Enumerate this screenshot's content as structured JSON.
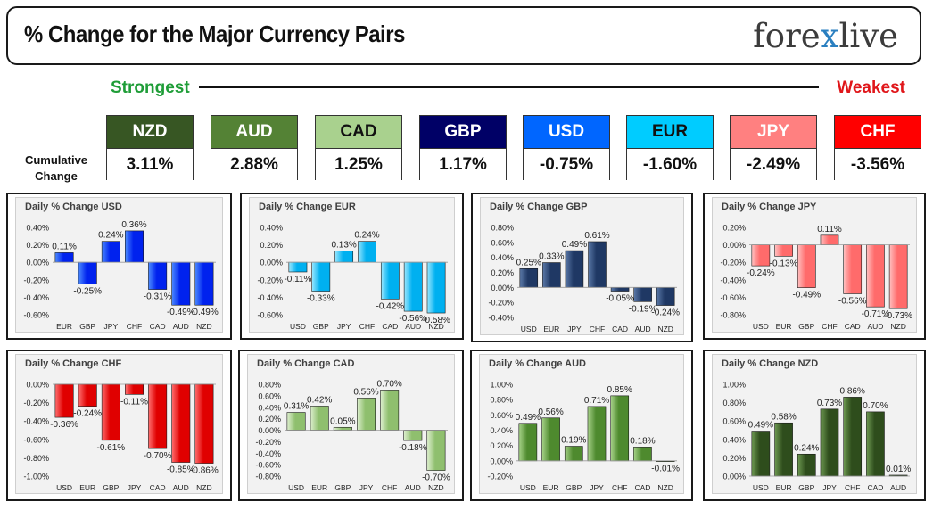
{
  "header": {
    "title": "% Change for the Major Currency Pairs",
    "logo_left": "fore",
    "logo_x": "x",
    "logo_right": "live"
  },
  "scale": {
    "strongest": "Strongest",
    "weakest": "Weakest",
    "cumulative_label": "Cumulative Change"
  },
  "currencies": [
    {
      "name": "NZD",
      "value": "3.11%",
      "color": "#375623",
      "text": "#ffffff"
    },
    {
      "name": "AUD",
      "value": "2.88%",
      "color": "#548235",
      "text": "#ffffff"
    },
    {
      "name": "CAD",
      "value": "1.25%",
      "color": "#a9d18e",
      "text": "#111111"
    },
    {
      "name": "GBP",
      "value": "1.17%",
      "color": "#000066",
      "text": "#ffffff"
    },
    {
      "name": "USD",
      "value": "-0.75%",
      "color": "#0066ff",
      "text": "#ffffff"
    },
    {
      "name": "EUR",
      "value": "-1.60%",
      "color": "#00ccff",
      "text": "#111111"
    },
    {
      "name": "JPY",
      "value": "-2.49%",
      "color": "#ff8080",
      "text": "#ffffff"
    },
    {
      "name": "CHF",
      "value": "-3.56%",
      "color": "#ff0000",
      "text": "#ffffff"
    }
  ],
  "chart_data": [
    {
      "type": "bar",
      "title": "Daily % Change USD",
      "categories": [
        "EUR",
        "GBP",
        "JPY",
        "CHF",
        "CAD",
        "AUD",
        "NZD"
      ],
      "values": [
        0.11,
        -0.25,
        0.24,
        0.36,
        -0.31,
        -0.49,
        -0.49
      ],
      "labels": [
        "0.11%",
        "-0.25%",
        "0.24%",
        "0.36%",
        "-0.31%",
        "-0.49%",
        "-0.49%"
      ],
      "yticks": [
        0.4,
        0.2,
        0.0,
        -0.2,
        -0.4,
        -0.6
      ],
      "ytick_labels": [
        "0.40%",
        "0.20%",
        "0.00%",
        "-0.20%",
        "-0.40%",
        "-0.60%"
      ],
      "ylim": [
        -0.6,
        0.4
      ],
      "color": "#0022ee",
      "light": "#4d8cff"
    },
    {
      "type": "bar",
      "title": "Daily % Change EUR",
      "categories": [
        "USD",
        "GBP",
        "JPY",
        "CHF",
        "CAD",
        "AUD",
        "NZD"
      ],
      "values": [
        -0.11,
        -0.33,
        0.13,
        0.24,
        -0.42,
        -0.56,
        -0.58
      ],
      "labels": [
        "-0.11%",
        "-0.33%",
        "0.13%",
        "0.24%",
        "-0.42%",
        "-0.56%",
        "-0.58%"
      ],
      "yticks": [
        0.4,
        0.2,
        0.0,
        -0.2,
        -0.4,
        -0.6
      ],
      "ytick_labels": [
        "0.40%",
        "0.20%",
        "0.00%",
        "-0.20%",
        "-0.40%",
        "-0.60%"
      ],
      "ylim": [
        -0.6,
        0.4
      ],
      "color": "#00b0f0",
      "light": "#9be8ff"
    },
    {
      "type": "bar",
      "title": "Daily % Change GBP",
      "categories": [
        "USD",
        "EUR",
        "JPY",
        "CHF",
        "CAD",
        "AUD",
        "NZD"
      ],
      "values": [
        0.25,
        0.33,
        0.49,
        0.61,
        -0.05,
        -0.19,
        -0.24
      ],
      "labels": [
        "0.25%",
        "0.33%",
        "0.49%",
        "0.61%",
        "-0.05%",
        "-0.19%",
        "-0.24%"
      ],
      "yticks": [
        0.8,
        0.6,
        0.4,
        0.2,
        0.0,
        -0.2,
        -0.4
      ],
      "ytick_labels": [
        "0.80%",
        "0.60%",
        "0.40%",
        "0.20%",
        "0.00%",
        "-0.20%",
        "-0.40%"
      ],
      "ylim": [
        -0.4,
        0.8
      ],
      "color": "#1f3864",
      "light": "#5b79a8"
    },
    {
      "type": "bar",
      "title": "Daily % Change JPY",
      "categories": [
        "USD",
        "EUR",
        "GBP",
        "CHF",
        "CAD",
        "AUD",
        "NZD"
      ],
      "values": [
        -0.24,
        -0.13,
        -0.49,
        0.11,
        -0.56,
        -0.71,
        -0.73
      ],
      "labels": [
        "-0.24%",
        "-0.13%",
        "-0.49%",
        "0.11%",
        "-0.56%",
        "-0.71%",
        "-0.73%"
      ],
      "yticks": [
        0.2,
        0.0,
        -0.2,
        -0.4,
        -0.6,
        -0.8
      ],
      "ytick_labels": [
        "0.20%",
        "0.00%",
        "-0.20%",
        "-0.40%",
        "-0.60%",
        "-0.80%"
      ],
      "ylim": [
        -0.8,
        0.2
      ],
      "color": "#ff6b6b",
      "light": "#ffc2c2"
    },
    {
      "type": "bar",
      "title": "Daily % Change CHF",
      "categories": [
        "USD",
        "EUR",
        "GBP",
        "JPY",
        "CAD",
        "AUD",
        "NZD"
      ],
      "values": [
        -0.36,
        -0.24,
        -0.61,
        -0.11,
        -0.7,
        -0.85,
        -0.86
      ],
      "labels": [
        "-0.36%",
        "-0.24%",
        "-0.61%",
        "-0.11%",
        "-0.70%",
        "-0.85%",
        "-0.86%"
      ],
      "yticks": [
        0.0,
        -0.2,
        -0.4,
        -0.6,
        -0.8,
        -1.0
      ],
      "ytick_labels": [
        "0.00%",
        "-0.20%",
        "-0.40%",
        "-0.60%",
        "-0.80%",
        "-1.00%"
      ],
      "ylim": [
        -1.0,
        0.0
      ],
      "color": "#e00000",
      "light": "#ff7070"
    },
    {
      "type": "bar",
      "title": "Daily % Change CAD",
      "categories": [
        "USD",
        "EUR",
        "GBP",
        "JPY",
        "CHF",
        "AUD",
        "NZD"
      ],
      "values": [
        0.31,
        0.42,
        0.05,
        0.56,
        0.7,
        -0.18,
        -0.7
      ],
      "labels": [
        "0.31%",
        "0.42%",
        "0.05%",
        "0.56%",
        "0.70%",
        "-0.18%",
        "-0.70%"
      ],
      "yticks": [
        0.8,
        0.6,
        0.4,
        0.2,
        0.0,
        -0.2,
        -0.4,
        -0.6,
        -0.8
      ],
      "ytick_labels": [
        "0.80%",
        "0.60%",
        "0.40%",
        "0.20%",
        "0.00%",
        "-0.20%",
        "-0.40%",
        "-0.60%",
        "-0.80%"
      ],
      "ylim": [
        -0.8,
        0.8
      ],
      "color": "#8fbf6e",
      "light": "#dff0d0"
    },
    {
      "type": "bar",
      "title": "Daily % Change AUD",
      "categories": [
        "USD",
        "EUR",
        "GBP",
        "JPY",
        "CHF",
        "CAD",
        "NZD"
      ],
      "values": [
        0.49,
        0.56,
        0.19,
        0.71,
        0.85,
        0.18,
        -0.01
      ],
      "labels": [
        "0.49%",
        "0.56%",
        "0.19%",
        "0.71%",
        "0.85%",
        "0.18%",
        "-0.01%"
      ],
      "yticks": [
        1.0,
        0.8,
        0.6,
        0.4,
        0.2,
        0.0,
        -0.2
      ],
      "ytick_labels": [
        "1.00%",
        "0.80%",
        "0.60%",
        "0.40%",
        "0.20%",
        "0.00%",
        "-0.20%"
      ],
      "ylim": [
        -0.2,
        1.0
      ],
      "color": "#4e8a2e",
      "light": "#a8d38a"
    },
    {
      "type": "bar",
      "title": "Daily % Change NZD",
      "categories": [
        "USD",
        "EUR",
        "GBP",
        "JPY",
        "CHF",
        "CAD",
        "AUD"
      ],
      "values": [
        0.49,
        0.58,
        0.24,
        0.73,
        0.86,
        0.7,
        0.01
      ],
      "labels": [
        "0.49%",
        "0.58%",
        "0.24%",
        "0.73%",
        "0.86%",
        "0.70%",
        "0.01%"
      ],
      "yticks": [
        1.0,
        0.8,
        0.6,
        0.4,
        0.2,
        0.0
      ],
      "ytick_labels": [
        "1.00%",
        "0.80%",
        "0.60%",
        "0.40%",
        "0.20%",
        "0.00%"
      ],
      "ylim": [
        0.0,
        1.0
      ],
      "color": "#2e4d1c",
      "light": "#6e9a52"
    }
  ]
}
